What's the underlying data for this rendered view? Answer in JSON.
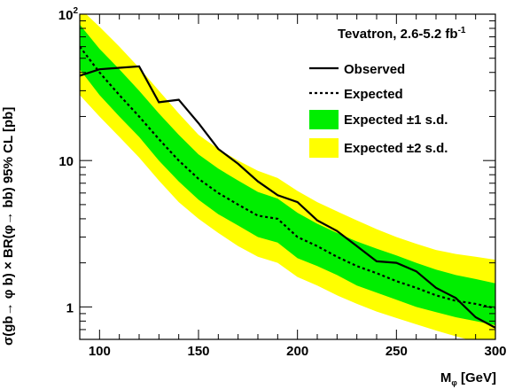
{
  "chart_data": {
    "type": "line",
    "header": {
      "text": "Tevatron, 2.6-5.2 fb",
      "sup": "-1"
    },
    "ylabel": "σ(gb→ φ b) × BR(φ→ bb) 95% CL [pb]",
    "xlabel": {
      "main": "M",
      "sub": "φ",
      "unit": " [GeV]"
    },
    "xlim": [
      90,
      300
    ],
    "ylim": [
      0.6,
      100
    ],
    "yscale": "log",
    "x_ticks": [
      {
        "value": 100,
        "label": "100"
      },
      {
        "value": 150,
        "label": "150"
      },
      {
        "value": 200,
        "label": "200"
      },
      {
        "value": 250,
        "label": "250"
      },
      {
        "value": 300,
        "label": "300"
      }
    ],
    "y_ticks": [
      {
        "value": 1,
        "label": "1"
      },
      {
        "value": 10,
        "label": "10"
      },
      {
        "value": 100,
        "label": "10",
        "sup": "2"
      }
    ],
    "legend": [
      {
        "key": "observed",
        "label": "Observed"
      },
      {
        "key": "expected",
        "label": "Expected"
      },
      {
        "key": "band1",
        "label": "Expected ±1 s.d."
      },
      {
        "key": "band2",
        "label": "Expected ±2 s.d."
      }
    ],
    "colors": {
      "band1": "#00ee00",
      "band2": "#ffff00",
      "line": "#000000"
    },
    "x": [
      90,
      100,
      110,
      120,
      130,
      140,
      150,
      160,
      170,
      180,
      190,
      200,
      210,
      220,
      230,
      240,
      250,
      260,
      270,
      280,
      290,
      300
    ],
    "series": [
      {
        "name": "Observed",
        "values": [
          38,
          42,
          43,
          44,
          25,
          26,
          18,
          12,
          9.5,
          7.2,
          5.8,
          5.2,
          3.9,
          3.3,
          2.6,
          2.05,
          2.0,
          1.75,
          1.35,
          1.15,
          0.85,
          0.72
        ]
      },
      {
        "name": "Expected",
        "values": [
          60,
          40,
          28,
          20,
          14,
          10,
          7.5,
          6.0,
          5.0,
          4.2,
          4.0,
          3.0,
          2.6,
          2.2,
          1.9,
          1.7,
          1.5,
          1.35,
          1.2,
          1.1,
          1.05,
          0.98
        ]
      },
      {
        "name": "Expected +1 s.d.",
        "values": [
          85,
          58,
          42,
          30,
          21,
          15,
          11,
          8.8,
          7.3,
          6.1,
          5.5,
          4.4,
          3.7,
          3.2,
          2.8,
          2.5,
          2.25,
          2.0,
          1.8,
          1.65,
          1.55,
          1.45
        ]
      },
      {
        "name": "Expected -1 s.d.",
        "values": [
          42,
          28,
          20,
          14.5,
          10,
          7.2,
          5.4,
          4.3,
          3.6,
          3.0,
          2.75,
          2.15,
          1.9,
          1.65,
          1.4,
          1.25,
          1.12,
          1.0,
          0.92,
          0.85,
          0.8,
          0.75
        ]
      },
      {
        "name": "Expected +2 s.d.",
        "values": [
          110,
          82,
          60,
          43,
          30,
          21,
          15,
          12,
          10,
          8.5,
          7.6,
          6.2,
          5.2,
          4.5,
          3.9,
          3.4,
          3.0,
          2.7,
          2.45,
          2.3,
          2.2,
          2.1
        ]
      },
      {
        "name": "Expected -2 s.d.",
        "values": [
          28,
          20,
          14.5,
          10.5,
          7.3,
          5.2,
          4.0,
          3.2,
          2.6,
          2.2,
          2.0,
          1.6,
          1.4,
          1.2,
          1.05,
          0.93,
          0.84,
          0.76,
          0.69,
          0.63,
          0.58,
          0.54
        ]
      }
    ]
  }
}
